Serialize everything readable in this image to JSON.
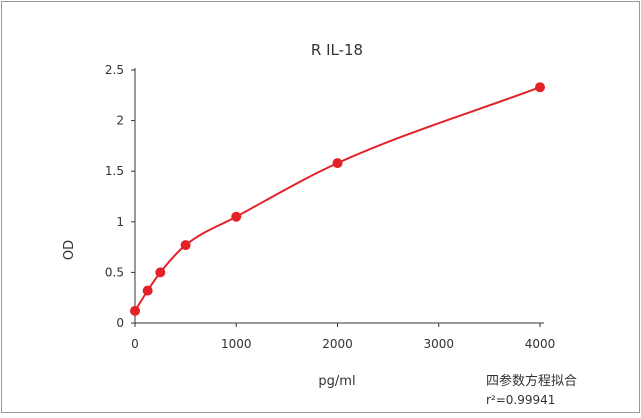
{
  "chart_data": {
    "type": "line",
    "title": "R IL-18",
    "xlabel": "pg/ml",
    "ylabel": "OD",
    "xlim": [
      0,
      4000
    ],
    "ylim": [
      0,
      2.5
    ],
    "x_ticks": [
      "0",
      "1000",
      "2000",
      "3000",
      "4000"
    ],
    "y_ticks": [
      "0",
      "0.5",
      "1",
      "1.5",
      "2",
      "2.5"
    ],
    "grid": false,
    "legend": "none",
    "series": [
      {
        "color": "#e32228",
        "points": [
          {
            "x": 0,
            "y": 0.12
          },
          {
            "x": 125,
            "y": 0.32
          },
          {
            "x": 250,
            "y": 0.5
          },
          {
            "x": 500,
            "y": 0.77
          },
          {
            "x": 1000,
            "y": 1.05
          },
          {
            "x": 2000,
            "y": 1.58
          },
          {
            "x": 4000,
            "y": 2.33
          }
        ]
      }
    ],
    "fit": {
      "method": "四参数方程拟合",
      "r2_label": "r²=0.99941"
    }
  },
  "colors": {
    "curve": "#e32228",
    "axis": "#333333",
    "frame": "#999999"
  }
}
